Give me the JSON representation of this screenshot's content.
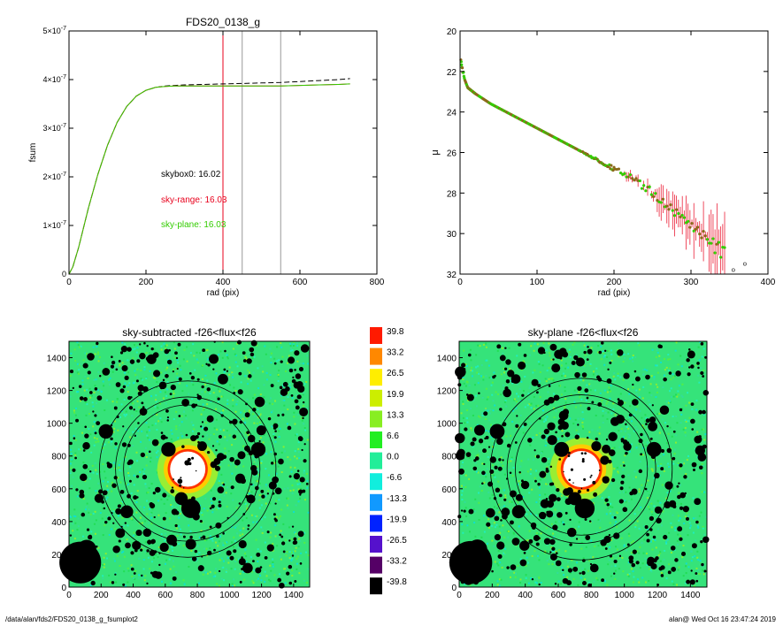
{
  "footer": {
    "path": "/data/alan/fds2/FDS20_0138_g_fsumplot2",
    "timestamp": "alan@  Wed Oct 16 23:47:24 2019"
  },
  "colors": {
    "sky_range": "#e8001c",
    "sky_plane": "#33cc00",
    "sky_range_line": "#e03030",
    "box_line": "#999999"
  },
  "chart_data": [
    {
      "type": "line",
      "title": "FDS20_0138_g",
      "xlabel": "rad (pix)",
      "ylabel": "fsum",
      "xlim": [
        0,
        800
      ],
      "ylim": [
        0,
        5e-07
      ],
      "xticks": [
        "0",
        "200",
        "400",
        "600",
        "800"
      ],
      "yticks": [
        {
          "mant": "0",
          "exp": ""
        },
        {
          "mant": "1×10",
          "exp": "-7"
        },
        {
          "mant": "2×10",
          "exp": "-7"
        },
        {
          "mant": "3×10",
          "exp": "-7"
        },
        {
          "mant": "4×10",
          "exp": "-7"
        },
        {
          "mant": "5×10",
          "exp": "-7"
        }
      ],
      "vlines": [
        {
          "x": 400,
          "color": "red"
        },
        {
          "x": 450,
          "color": "gray"
        },
        {
          "x": 550,
          "color": "gray"
        }
      ],
      "annotations": [
        {
          "text": "skybox0: 16.02",
          "color": "black"
        },
        {
          "text": "sky-range: 16.03",
          "color": "red"
        },
        {
          "text": "sky-plane: 16.03",
          "color": "green"
        }
      ],
      "series": [
        {
          "style": "dashed",
          "color": "black",
          "x": [
            0,
            10,
            25,
            50,
            75,
            100,
            125,
            150,
            175,
            200,
            225,
            250,
            275,
            300,
            350,
            400,
            450,
            500,
            550,
            600,
            650,
            700,
            730
          ],
          "y": [
            0,
            1.5e-08,
            5.5e-08,
            1.35e-07,
            2.05e-07,
            2.65e-07,
            3.12e-07,
            3.45e-07,
            3.66e-07,
            3.78e-07,
            3.84e-07,
            3.87e-07,
            3.88e-07,
            3.89e-07,
            3.9e-07,
            3.91e-07,
            3.92e-07,
            3.93e-07,
            3.94e-07,
            3.96e-07,
            3.98e-07,
            4e-07,
            4.02e-07
          ]
        },
        {
          "style": "solid",
          "color": "red",
          "x": [
            0,
            10,
            25,
            50,
            75,
            100,
            125,
            150,
            175,
            200,
            225,
            250,
            275,
            300,
            350,
            400,
            450,
            500,
            550,
            600,
            650,
            700,
            730
          ],
          "y": [
            0,
            1.5e-08,
            5.5e-08,
            1.35e-07,
            2.05e-07,
            2.65e-07,
            3.12e-07,
            3.45e-07,
            3.66e-07,
            3.78e-07,
            3.84e-07,
            3.86e-07,
            3.87e-07,
            3.87e-07,
            3.87e-07,
            3.87e-07,
            3.87e-07,
            3.87e-07,
            3.87e-07,
            3.88e-07,
            3.89e-07,
            3.9e-07,
            3.91e-07
          ]
        },
        {
          "style": "solid",
          "color": "green",
          "x": [
            0,
            10,
            25,
            50,
            75,
            100,
            125,
            150,
            175,
            200,
            225,
            250,
            275,
            300,
            350,
            400,
            450,
            500,
            550,
            600,
            650,
            700,
            730
          ],
          "y": [
            0,
            1.5e-08,
            5.5e-08,
            1.35e-07,
            2.05e-07,
            2.65e-07,
            3.12e-07,
            3.45e-07,
            3.66e-07,
            3.78e-07,
            3.84e-07,
            3.86e-07,
            3.87e-07,
            3.87e-07,
            3.87e-07,
            3.87e-07,
            3.87e-07,
            3.87e-07,
            3.87e-07,
            3.88e-07,
            3.89e-07,
            3.9e-07,
            3.91e-07
          ]
        }
      ]
    },
    {
      "type": "scatter",
      "title": "",
      "xlabel": "rad (pix)",
      "ylabel": "μ",
      "xlim": [
        0,
        400
      ],
      "ylim": [
        32,
        20
      ],
      "xticks": [
        "0",
        "100",
        "200",
        "300",
        "400"
      ],
      "yticks": [
        "20",
        "22",
        "24",
        "26",
        "28",
        "30",
        "32"
      ],
      "profile": {
        "x": [
          1,
          3,
          6,
          10,
          20,
          40,
          70,
          100,
          130,
          160,
          190,
          220,
          250,
          270,
          290,
          310,
          330,
          345
        ],
        "y": [
          21.3,
          21.9,
          22.4,
          22.8,
          23.1,
          23.6,
          24.2,
          24.8,
          25.4,
          26.0,
          26.6,
          27.2,
          28.0,
          28.6,
          29.3,
          30.0,
          30.6,
          31.0
        ]
      },
      "outliers": [
        {
          "x": 370,
          "y": 31.5
        },
        {
          "x": 355,
          "y": 31.8
        }
      ]
    },
    {
      "type": "heatmap",
      "title": "sky-subtracted -f26<flux<f26",
      "xlim": [
        0,
        1500
      ],
      "ylim": [
        0,
        1500
      ],
      "xticks": [
        "0",
        "200",
        "400",
        "600",
        "800",
        "1000",
        "1200",
        "1400"
      ],
      "yticks": [
        "0",
        "200",
        "400",
        "600",
        "800",
        "1000",
        "1200",
        "1400"
      ],
      "center": [
        740,
        720
      ],
      "ring_radii": [
        400,
        450,
        550
      ]
    },
    {
      "type": "heatmap",
      "title": "sky-plane -f26<flux<f26",
      "xlim": [
        0,
        1500
      ],
      "ylim": [
        0,
        1500
      ],
      "xticks": [
        "0",
        "200",
        "400",
        "600",
        "800",
        "1000",
        "1200",
        "1400"
      ],
      "yticks": [
        "0",
        "200",
        "400",
        "600",
        "800",
        "1000",
        "1200",
        "1400"
      ],
      "center": [
        740,
        720
      ],
      "ring_radii": [
        400,
        450,
        550
      ]
    }
  ],
  "colorbar": {
    "levels": [
      "39.8",
      "33.2",
      "26.5",
      "19.9",
      "13.3",
      "6.6",
      "0.0",
      "-6.6",
      "-13.3",
      "-19.9",
      "-26.5",
      "-33.2",
      "-39.8"
    ],
    "colors": [
      "#ff1a00",
      "#ff8800",
      "#ffee00",
      "#ccee00",
      "#88ee22",
      "#22ee22",
      "#22ee99",
      "#11eedd",
      "#1199ff",
      "#0022ff",
      "#5511cc",
      "#550066",
      "#000000"
    ]
  }
}
